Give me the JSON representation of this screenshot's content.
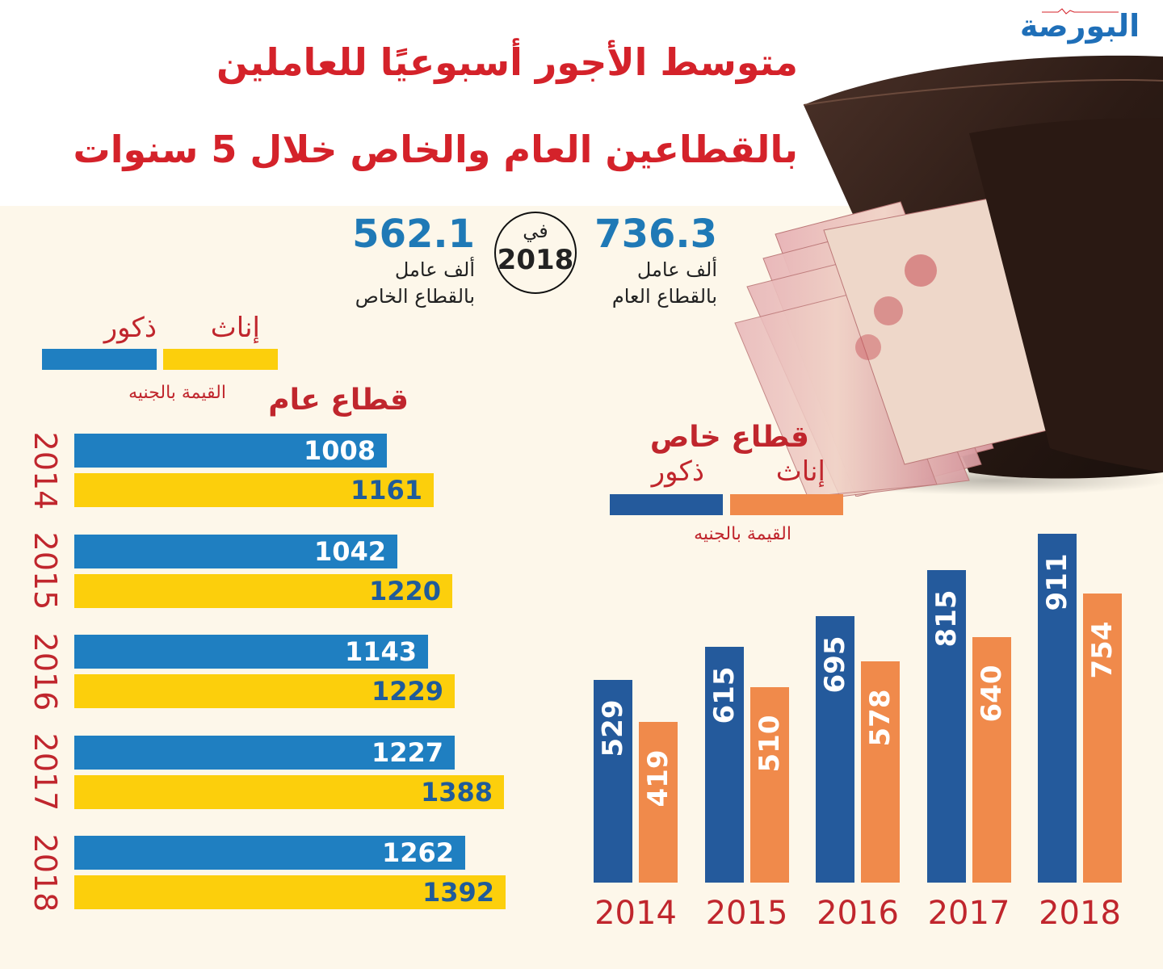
{
  "brand": {
    "logo_text": "البورصة"
  },
  "header": {
    "title_line1": "متوسط الأجور أسبوعيًا للعاملين",
    "title_line2": "بالقطاعين العام والخاص خلال 5 سنوات"
  },
  "headline": {
    "public": {
      "value": "736.3",
      "unit": "ألف عامل",
      "label": "بالقطاع العام"
    },
    "private": {
      "value": "562.1",
      "unit": "ألف عامل",
      "label": "بالقطاع الخاص"
    },
    "year_prefix": "في",
    "year": "2018"
  },
  "public_legend": {
    "males": "ذكور",
    "females": "إناث",
    "unit": "القيمة بالجنيه",
    "sector_title": "قطاع عام"
  },
  "private_legend": {
    "sector_title": "قطاع خاص",
    "males": "ذكور",
    "females": "إناث",
    "unit": "القيمة بالجنيه"
  },
  "colors": {
    "title_red": "#d4222a",
    "public_males": "#1f7fc1",
    "public_females": "#fccf0c",
    "private_males": "#245a9c",
    "private_females": "#f08a4b"
  },
  "chart_data": [
    {
      "type": "bar",
      "orientation": "horizontal",
      "title": "قطاع عام",
      "unit": "القيمة بالجنيه",
      "categories": [
        "2014",
        "2015",
        "2016",
        "2017",
        "2018"
      ],
      "series": [
        {
          "name": "ذكور",
          "values": [
            1008,
            1042,
            1143,
            1227,
            1262
          ]
        },
        {
          "name": "إناث",
          "values": [
            1161,
            1220,
            1229,
            1388,
            1392
          ]
        }
      ],
      "xlim": [
        0,
        1450
      ],
      "legend": "top",
      "grid": false
    },
    {
      "type": "bar",
      "orientation": "vertical",
      "title": "قطاع خاص",
      "unit": "القيمة بالجنيه",
      "categories": [
        "2014",
        "2015",
        "2016",
        "2017",
        "2018"
      ],
      "series": [
        {
          "name": "ذكور",
          "values": [
            529,
            615,
            695,
            815,
            911
          ]
        },
        {
          "name": "إناث",
          "values": [
            419,
            510,
            578,
            640,
            754
          ]
        }
      ],
      "ylim": [
        0,
        1000
      ],
      "legend": "top",
      "grid": false
    }
  ]
}
